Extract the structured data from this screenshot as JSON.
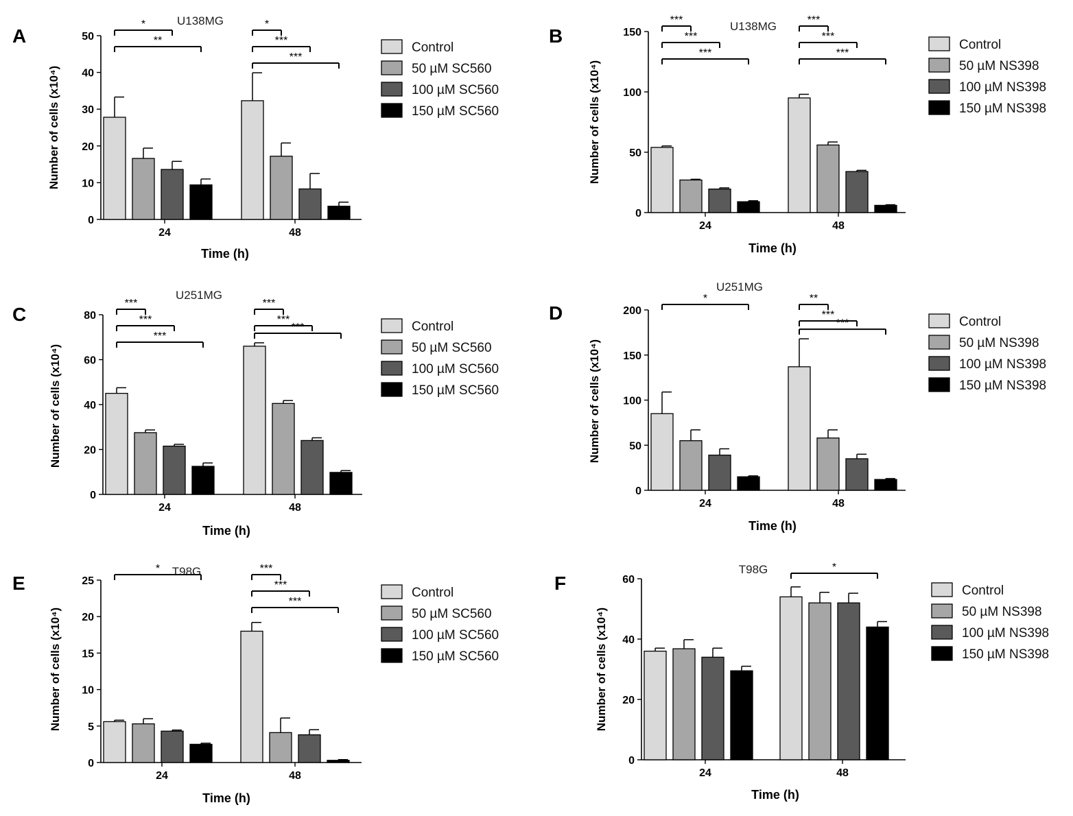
{
  "figure": {
    "legend_colors": [
      "#d9d9d9",
      "#a6a6a6",
      "#5a5a5a",
      "#000000"
    ],
    "panels": [
      {
        "letter": "A",
        "title": "U138MG",
        "ylabel": "Number of cells (x10⁴)",
        "xlabel": "Time (h)",
        "legend": [
          "Control",
          "50 µM SC560",
          "100 µM SC560",
          "150 µM SC560"
        ],
        "sig": [
          {
            "g": 0,
            "from": 0,
            "to": 2,
            "label": "*"
          },
          {
            "g": 0,
            "from": 0,
            "to": 3,
            "label": "**"
          },
          {
            "g": 1,
            "from": 0,
            "to": 1,
            "label": "*"
          },
          {
            "g": 1,
            "from": 0,
            "to": 2,
            "label": "***"
          },
          {
            "g": 1,
            "from": 0,
            "to": 3,
            "label": "***"
          }
        ]
      },
      {
        "letter": "B",
        "title": "U138MG",
        "ylabel": "Number of cells (x10⁴)",
        "xlabel": "Time (h)",
        "legend": [
          "Control",
          "50 µM NS398",
          "100 µM NS398",
          "150 µM NS398"
        ],
        "sig": [
          {
            "g": 0,
            "from": 0,
            "to": 1,
            "label": "***"
          },
          {
            "g": 0,
            "from": 0,
            "to": 2,
            "label": "***"
          },
          {
            "g": 0,
            "from": 0,
            "to": 3,
            "label": "***"
          },
          {
            "g": 1,
            "from": 0,
            "to": 1,
            "label": "***"
          },
          {
            "g": 1,
            "from": 0,
            "to": 2,
            "label": "***"
          },
          {
            "g": 1,
            "from": 0,
            "to": 3,
            "label": "***"
          }
        ]
      },
      {
        "letter": "C",
        "title": "U251MG",
        "ylabel": "Number of cells (x10⁴)",
        "xlabel": "Time (h)",
        "legend": [
          "Control",
          "50 µM SC560",
          "100 µM SC560",
          "150 µM SC560"
        ],
        "sig": [
          {
            "g": 0,
            "from": 0,
            "to": 1,
            "label": "***"
          },
          {
            "g": 0,
            "from": 0,
            "to": 2,
            "label": "***"
          },
          {
            "g": 0,
            "from": 0,
            "to": 3,
            "label": "***"
          },
          {
            "g": 1,
            "from": 0,
            "to": 1,
            "label": "***"
          },
          {
            "g": 1,
            "from": 0,
            "to": 2,
            "label": "***"
          },
          {
            "g": 1,
            "from": 0,
            "to": 3,
            "label": "***"
          }
        ]
      },
      {
        "letter": "D",
        "title": "U251MG",
        "ylabel": "Number of cells (x10⁴)",
        "xlabel": "Time (h)",
        "legend": [
          "Control",
          "50 µM NS398",
          "100 µM NS398",
          "150 µM NS398"
        ],
        "sig": [
          {
            "g": 0,
            "from": 0,
            "to": 3,
            "label": "*"
          },
          {
            "g": 1,
            "from": 0,
            "to": 1,
            "label": "**"
          },
          {
            "g": 1,
            "from": 0,
            "to": 2,
            "label": "***"
          },
          {
            "g": 1,
            "from": 0,
            "to": 3,
            "label": "***"
          }
        ]
      },
      {
        "letter": "E",
        "title": "T98G",
        "ylabel": "Number of cells (x10⁴)",
        "xlabel": "Time (h)",
        "legend": [
          "Control",
          "50 µM SC560",
          "100 µM SC560",
          "150 µM SC560"
        ],
        "sig": [
          {
            "g": 0,
            "from": 0,
            "to": 3,
            "label": "*"
          },
          {
            "g": 1,
            "from": 0,
            "to": 1,
            "label": "***"
          },
          {
            "g": 1,
            "from": 0,
            "to": 2,
            "label": "***"
          },
          {
            "g": 1,
            "from": 0,
            "to": 3,
            "label": "***"
          }
        ]
      },
      {
        "letter": "F",
        "title": "T98G",
        "ylabel": "Number of cells (x10⁴)",
        "xlabel": "Time (h)",
        "legend": [
          "Control",
          "50 µM NS398",
          "100 µM NS398",
          "150 µM NS398"
        ],
        "sig": [
          {
            "g": 1,
            "from": 0,
            "to": 3,
            "label": "*"
          }
        ]
      }
    ]
  },
  "chart_data": [
    {
      "type": "bar",
      "title": "U138MG",
      "xlabel": "Time (h)",
      "ylabel": "Number of cells (x10⁴)",
      "categories": [
        "24",
        "48"
      ],
      "ylim": [
        0,
        50
      ],
      "yticks": [
        0,
        10,
        20,
        30,
        40,
        50
      ],
      "legend_position": "right",
      "series": [
        {
          "name": "Control",
          "values": [
            27.8,
            32.3
          ],
          "errors": [
            5.5,
            7.6
          ]
        },
        {
          "name": "50 µM SC560",
          "values": [
            16.6,
            17.2
          ],
          "errors": [
            2.8,
            3.6
          ]
        },
        {
          "name": "100 µM SC560",
          "values": [
            13.6,
            8.3
          ],
          "errors": [
            2.2,
            4.2
          ]
        },
        {
          "name": "150 µM SC560",
          "values": [
            9.4,
            3.6
          ],
          "errors": [
            1.6,
            1.1
          ]
        }
      ]
    },
    {
      "type": "bar",
      "title": "U138MG",
      "xlabel": "Time (h)",
      "ylabel": "Number of cells (x10⁴)",
      "categories": [
        "24",
        "48"
      ],
      "ylim": [
        0,
        150
      ],
      "yticks": [
        0,
        50,
        100,
        150
      ],
      "legend_position": "right",
      "series": [
        {
          "name": "Control",
          "values": [
            54,
            95
          ],
          "errors": [
            1.2,
            3
          ]
        },
        {
          "name": "50 µM NS398",
          "values": [
            27,
            56
          ],
          "errors": [
            0.6,
            2.5
          ]
        },
        {
          "name": "100 µM NS398",
          "values": [
            19.5,
            34
          ],
          "errors": [
            1,
            1
          ]
        },
        {
          "name": "150 µM NS398",
          "values": [
            9,
            6
          ],
          "errors": [
            0.8,
            0.5
          ]
        }
      ]
    },
    {
      "type": "bar",
      "title": "U251MG",
      "xlabel": "Time (h)",
      "ylabel": "Number of cells (x10⁴)",
      "categories": [
        "24",
        "48"
      ],
      "ylim": [
        0,
        80
      ],
      "yticks": [
        0,
        20,
        40,
        60,
        80
      ],
      "legend_position": "right",
      "series": [
        {
          "name": "Control",
          "values": [
            45,
            66
          ],
          "errors": [
            2.5,
            1.5
          ]
        },
        {
          "name": "50 µM SC560",
          "values": [
            27.5,
            40.5
          ],
          "errors": [
            1.2,
            1.3
          ]
        },
        {
          "name": "100 µM SC560",
          "values": [
            21.5,
            24
          ],
          "errors": [
            0.8,
            1.2
          ]
        },
        {
          "name": "150 µM SC560",
          "values": [
            12.5,
            9.8
          ],
          "errors": [
            1.5,
            0.8
          ]
        }
      ]
    },
    {
      "type": "bar",
      "title": "U251MG",
      "xlabel": "Time (h)",
      "ylabel": "Number of cells (x10⁴)",
      "categories": [
        "24",
        "48"
      ],
      "ylim": [
        0,
        200
      ],
      "yticks": [
        0,
        50,
        100,
        150,
        200
      ],
      "legend_position": "right",
      "series": [
        {
          "name": "Control",
          "values": [
            85,
            137
          ],
          "errors": [
            24,
            31
          ]
        },
        {
          "name": "50 µM NS398",
          "values": [
            55,
            58
          ],
          "errors": [
            12,
            9
          ]
        },
        {
          "name": "100 µM NS398",
          "values": [
            39,
            35
          ],
          "errors": [
            7,
            5
          ]
        },
        {
          "name": "150 µM NS398",
          "values": [
            15,
            12
          ],
          "errors": [
            1,
            1
          ]
        }
      ]
    },
    {
      "type": "bar",
      "title": "T98G",
      "xlabel": "Time (h)",
      "ylabel": "Number of cells (x10⁴)",
      "categories": [
        "24",
        "48"
      ],
      "ylim": [
        0,
        25
      ],
      "yticks": [
        0,
        5,
        10,
        15,
        20,
        25
      ],
      "legend_position": "right",
      "series": [
        {
          "name": "Control",
          "values": [
            5.6,
            18
          ],
          "errors": [
            0.2,
            1.2
          ]
        },
        {
          "name": "50 µM SC560",
          "values": [
            5.3,
            4.1
          ],
          "errors": [
            0.7,
            2
          ]
        },
        {
          "name": "100 µM SC560",
          "values": [
            4.3,
            3.8
          ],
          "errors": [
            0.15,
            0.7
          ]
        },
        {
          "name": "150 µM SC560",
          "values": [
            2.5,
            0.3
          ],
          "errors": [
            0.15,
            0.1
          ]
        }
      ]
    },
    {
      "type": "bar",
      "title": "T98G",
      "xlabel": "Time (h)",
      "ylabel": "Number of cells (x10⁴)",
      "categories": [
        "24",
        "48"
      ],
      "ylim": [
        0,
        60
      ],
      "yticks": [
        0,
        20,
        40,
        60
      ],
      "legend_position": "right",
      "series": [
        {
          "name": "Control",
          "values": [
            36,
            54
          ],
          "errors": [
            1,
            3.3
          ]
        },
        {
          "name": "50 µM NS398",
          "values": [
            36.8,
            52
          ],
          "errors": [
            3,
            3.5
          ]
        },
        {
          "name": "100 µM NS398",
          "values": [
            34,
            52
          ],
          "errors": [
            3,
            3.2
          ]
        },
        {
          "name": "150 µM NS398",
          "values": [
            29.5,
            44
          ],
          "errors": [
            1.5,
            1.8
          ]
        }
      ]
    }
  ]
}
